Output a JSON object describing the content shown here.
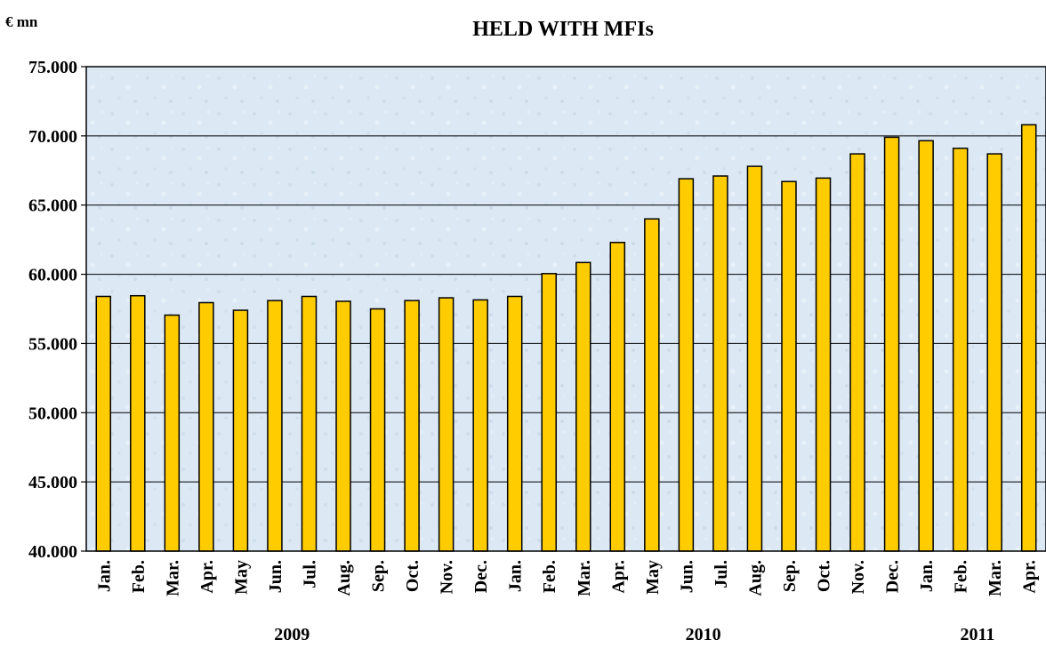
{
  "chart_data": {
    "type": "bar",
    "title": "HELD WITH MFIs",
    "unit_label": "€ mn",
    "ylim": [
      40000,
      75000
    ],
    "yticks": [
      "40.000",
      "45.000",
      "50.000",
      "55.000",
      "60.000",
      "65.000",
      "70.000",
      "75.000"
    ],
    "ytick_values": [
      40000,
      45000,
      50000,
      55000,
      60000,
      65000,
      70000,
      75000
    ],
    "grid": true,
    "bar_color": "#FFCC00",
    "plot_background": "#DCE9F5",
    "categories": [
      "Jan.",
      "Feb.",
      "Mar.",
      "Apr.",
      "May",
      "Jun.",
      "Jul.",
      "Aug.",
      "Sep.",
      "Oct.",
      "Nov.",
      "Dec.",
      "Jan.",
      "Feb.",
      "Mar.",
      "Apr.",
      "May",
      "Jun.",
      "Jul.",
      "Aug.",
      "Sep.",
      "Oct.",
      "Nov.",
      "Dec.",
      "Jan.",
      "Feb.",
      "Mar.",
      "Apr."
    ],
    "values": [
      58400,
      58450,
      57050,
      57950,
      57400,
      58100,
      58400,
      58050,
      57500,
      58100,
      58300,
      58150,
      58400,
      60050,
      60850,
      62300,
      64000,
      66900,
      67100,
      67800,
      66700,
      66950,
      68700,
      69900,
      69650,
      69100,
      68700,
      70800
    ],
    "years": [
      {
        "label": "2009",
        "start": 0,
        "end": 11
      },
      {
        "label": "2010",
        "start": 12,
        "end": 23
      },
      {
        "label": "2011",
        "start": 24,
        "end": 27
      }
    ]
  }
}
